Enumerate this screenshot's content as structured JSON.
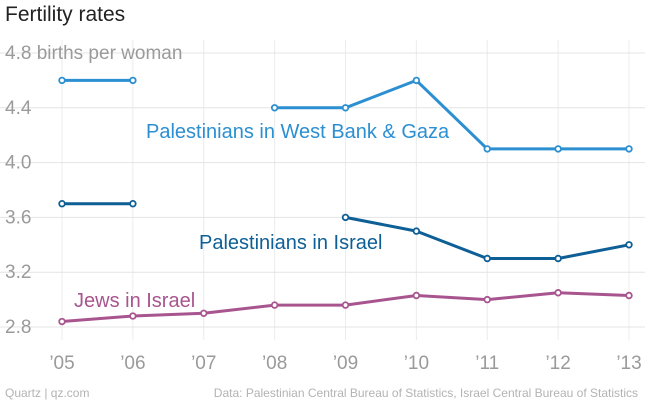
{
  "title": "Fertility rates",
  "footer": {
    "source_left": "Quartz | qz.com",
    "source_right": "Data: Palestinian Central Bureau of Statistics, Israel Central Bureau of Statistics"
  },
  "chart_data": {
    "type": "line",
    "title": "Fertility rates",
    "ylabel_unit": "births per woman",
    "ylim": [
      2.7,
      4.9
    ],
    "yticks": [
      2.8,
      3.2,
      3.6,
      4.0,
      4.4,
      4.8
    ],
    "ytick_labels": [
      "2.8",
      "3.2",
      "3.6",
      "4.0",
      "4.4",
      "4.8 births per woman"
    ],
    "x": [
      2005,
      2006,
      2007,
      2008,
      2009,
      2010,
      2011,
      2012,
      2013
    ],
    "x_labels": [
      "’05",
      "’06",
      "’07",
      "’08",
      "’09",
      "’10",
      "’11",
      "’12",
      "’13"
    ],
    "grid": true,
    "series": [
      {
        "name": "Palestinians in West Bank & Gaza",
        "color": "#2b8fd1",
        "values": [
          4.6,
          4.6,
          null,
          4.4,
          4.4,
          4.6,
          4.1,
          4.1,
          4.1
        ]
      },
      {
        "name": "Palestinians in Israel",
        "color": "#0d5f96",
        "values": [
          3.7,
          3.7,
          null,
          null,
          3.6,
          3.5,
          3.3,
          3.3,
          3.4
        ]
      },
      {
        "name": "Jews in Israel",
        "color": "#a8558f",
        "values": [
          2.84,
          2.88,
          2.9,
          2.96,
          2.96,
          3.03,
          3.0,
          3.05,
          3.03
        ]
      }
    ]
  }
}
